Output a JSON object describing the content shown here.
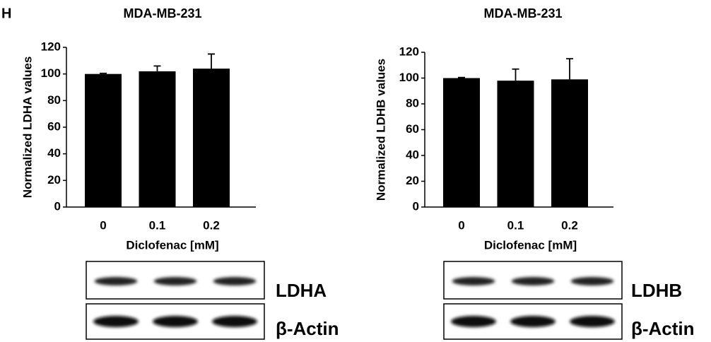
{
  "panel_label": "H",
  "chart_data": [
    {
      "type": "bar",
      "title": "MDA-MB-231",
      "y_label": "Normalized LDHA values",
      "x_label": "Diclofenac [mM]",
      "categories": [
        "0",
        "0.1",
        "0.2"
      ],
      "values": [
        100,
        102,
        104
      ],
      "errors": [
        0.5,
        4,
        11
      ],
      "color": "#000000",
      "ylim": [
        0,
        120
      ],
      "yticks": [
        0,
        20,
        40,
        60,
        80,
        100,
        120
      ],
      "blot_labels": [
        "LDHA",
        "β-Actin"
      ]
    },
    {
      "type": "bar",
      "title": "MDA-MB-231",
      "y_label": "Normalized LDHB values",
      "x_label": "Diclofenac [mM]",
      "categories": [
        "0",
        "0.1",
        "0.2"
      ],
      "values": [
        100,
        98,
        99
      ],
      "errors": [
        0.5,
        9,
        16
      ],
      "color": "#000000",
      "ylim": [
        0,
        120
      ],
      "yticks": [
        0,
        20,
        40,
        60,
        80,
        100,
        120
      ],
      "blot_labels": [
        "LDHB",
        "β-Actin"
      ]
    }
  ]
}
